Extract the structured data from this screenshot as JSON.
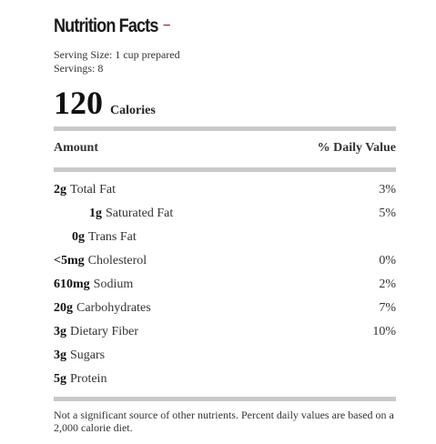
{
  "title": "Nutrition Facts",
  "collapse_symbol": "−",
  "serving_size": "Serving Size: 1 cup prepared",
  "servings": "Servings: 8",
  "calories_value": "120",
  "calories_label": "Calories",
  "header": {
    "amount": "Amount",
    "daily_value": "% Daily Value"
  },
  "nutrients": [
    {
      "amount": "2g",
      "name": "Total Fat",
      "pct": "3%"
    },
    {
      "amount": "1g",
      "name": "Saturated Fat",
      "pct": "5%"
    },
    {
      "amount": "0g",
      "name": "Trans Fat",
      "pct": ""
    },
    {
      "amount": "<5mg",
      "name": "Cholesterol",
      "pct": "0%"
    },
    {
      "amount": "610mg",
      "name": "Sodium",
      "pct": "2%"
    },
    {
      "amount": "20g",
      "name": "Carbohydrates",
      "pct": "7%"
    },
    {
      "amount": "3g",
      "name": "Dietary Fiber",
      "pct": "10%"
    },
    {
      "amount": "3g",
      "name": "Sugars",
      "pct": ""
    },
    {
      "amount": "5g",
      "name": "Protein",
      "pct": ""
    }
  ],
  "footnote": "Not a significant source of other nutrients. Percent daily values are based on a 2,000 calorie diet.",
  "colors": {
    "accent": "#a5122a",
    "divider": "#c9c9c9"
  }
}
